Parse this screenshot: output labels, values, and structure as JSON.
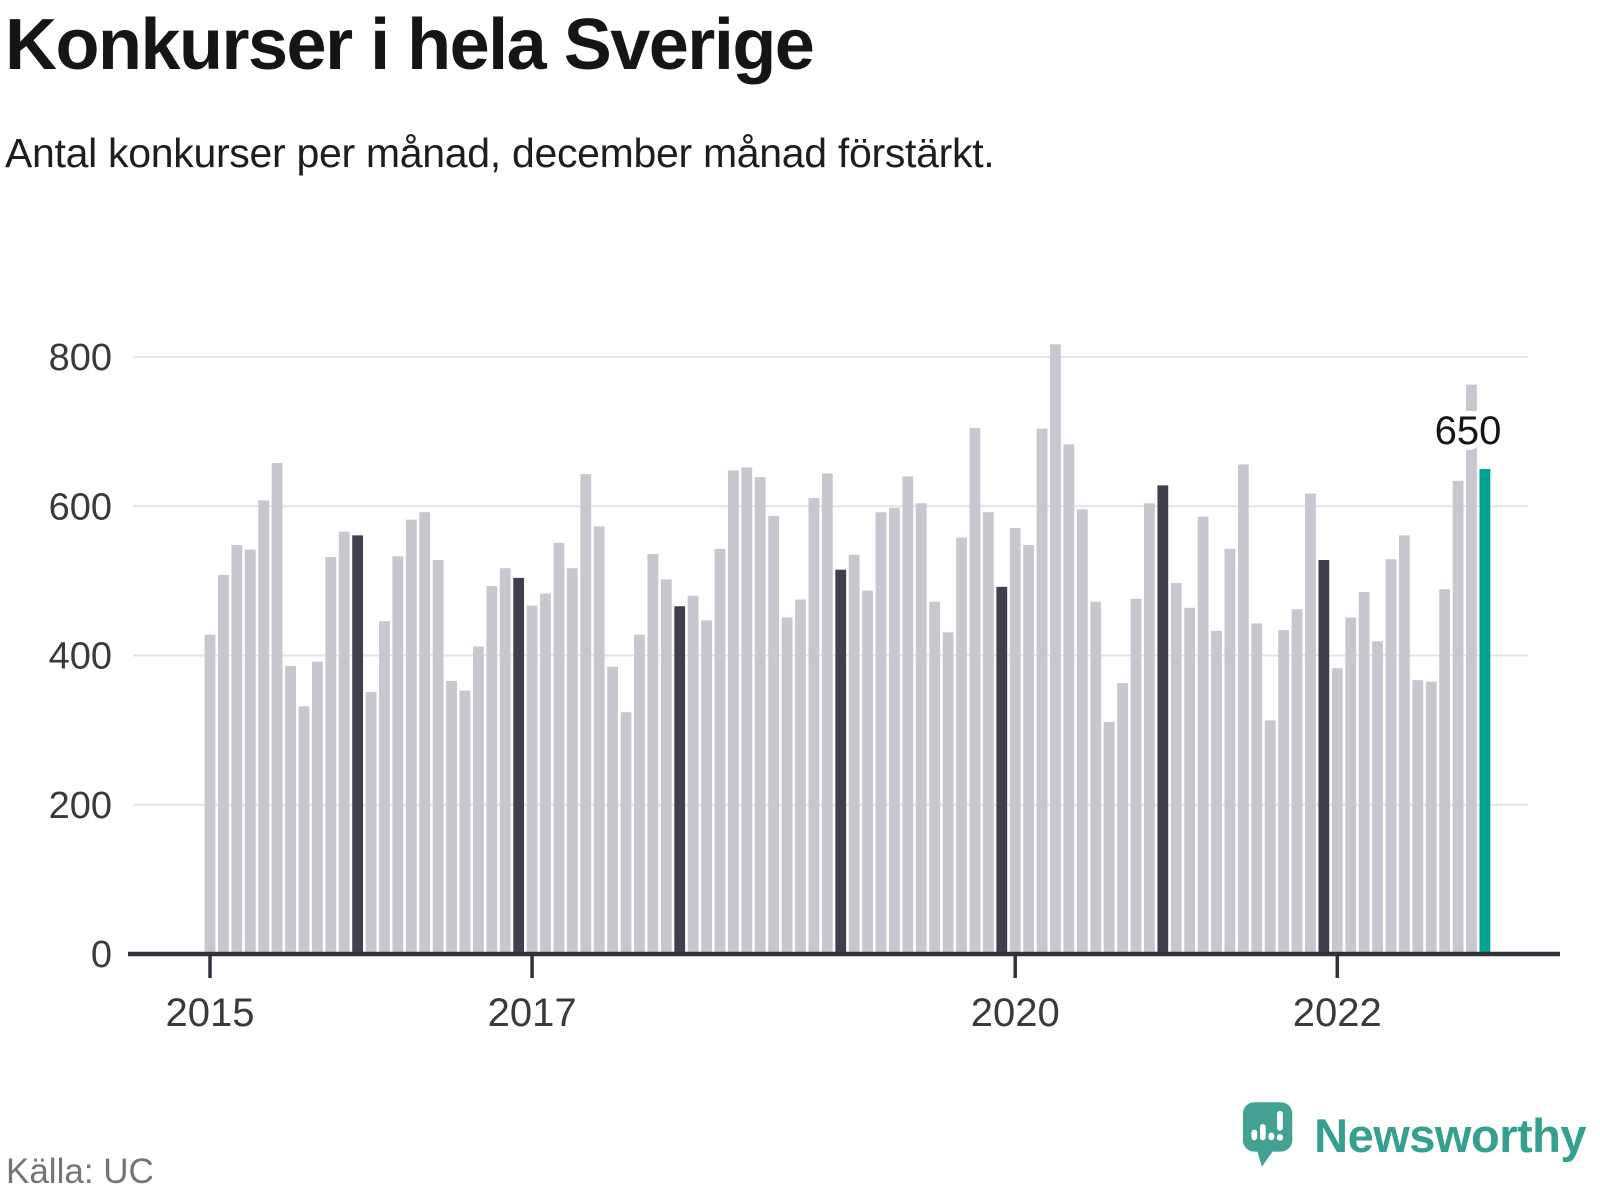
{
  "header": {
    "title": "Konkurser i hela Sverige",
    "subtitle": "Antal konkurser per månad, december månad förstärkt."
  },
  "footer": {
    "source": "Källa: UC",
    "brand_name": "Newsworthy",
    "brand_icon": "bar-chart-speech-bubble-icon"
  },
  "annotation": {
    "last_value_label": "650"
  },
  "colors": {
    "bar_default": "#c8c7cf",
    "bar_december": "#413f4e",
    "bar_highlight": "#00a392",
    "gridline": "#e4e3e8",
    "axis": "#32313b",
    "brand_teal": "#35a08f",
    "brand_icon_teal": "#44a294",
    "text_dark": "#151515",
    "text_gray": "#757575"
  },
  "chart_data": {
    "type": "bar",
    "title": "Konkurser i hela Sverige",
    "subtitle": "Antal konkurser per månad, december månad förstärkt.",
    "xlabel": "",
    "ylabel": "",
    "ylim": [
      0,
      800
    ],
    "yticks": [
      0,
      200,
      400,
      600,
      800
    ],
    "grid": true,
    "legend": "none",
    "bar_period": "monthly",
    "emphasis_rule": "Every December bar is dark; the final bar (December 2022) is teal and labeled 650",
    "xticks": [
      {
        "label": "2015",
        "month_index": 0
      },
      {
        "label": "2017",
        "month_index": 24
      },
      {
        "label": "2020",
        "month_index": 60
      },
      {
        "label": "2022",
        "month_index": 84
      }
    ],
    "series": [
      {
        "name": "Antal konkurser per månad",
        "start": "2015-01",
        "end": "2022-12",
        "year_values": [
          {
            "year": 2015,
            "values": [
              428,
              508,
              548,
              542,
              608,
              658,
              386,
              332,
              392,
              532,
              566,
              561
            ]
          },
          {
            "year": 2016,
            "values": [
              351,
              446,
              533,
              582,
              592,
              528,
              366,
              353,
              412,
              493,
              517,
              504
            ]
          },
          {
            "year": 2017,
            "values": [
              467,
              483,
              551,
              517,
              643,
              573,
              385,
              324,
              428,
              536,
              502,
              466
            ]
          },
          {
            "year": 2018,
            "values": [
              480,
              447,
              543,
              648,
              652,
              639,
              587,
              451,
              475,
              611,
              644,
              515
            ]
          },
          {
            "year": 2019,
            "values": [
              535,
              487,
              592,
              598,
              640,
              604,
              472,
              431,
              558,
              705,
              592,
              492
            ]
          },
          {
            "year": 2020,
            "values": [
              571,
              548,
              704,
              817,
              683,
              596,
              472,
              311,
              363,
              476,
              604,
              628
            ]
          },
          {
            "year": 2021,
            "values": [
              497,
              464,
              586,
              433,
              543,
              656,
              443,
              313,
              434,
              462,
              617,
              528
            ]
          },
          {
            "year": 2022,
            "values": [
              383,
              451,
              485,
              419,
              529,
              561,
              367,
              365,
              489,
              634,
              763,
              650
            ]
          }
        ]
      }
    ]
  }
}
